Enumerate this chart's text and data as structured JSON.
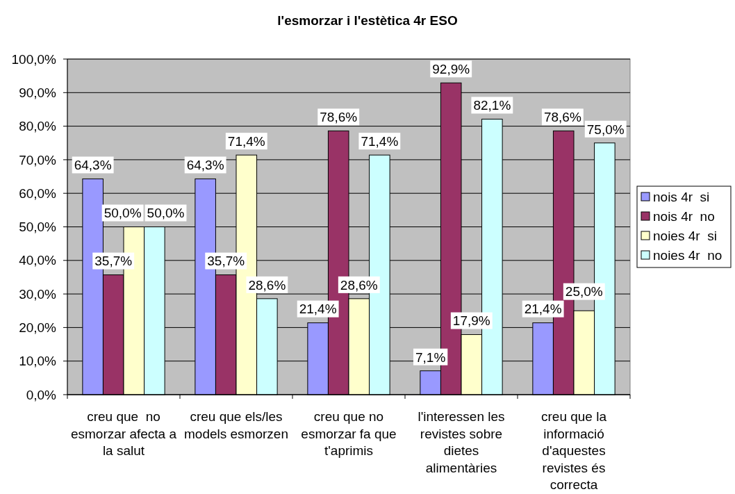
{
  "chart_data": {
    "type": "bar",
    "title": "l'esmorzar i l'estètica 4r ESO",
    "categories": [
      "creu que  no esmorzar afecta a la salut",
      "creu que els/les models esmorzen",
      "creu que no esmorzar fa que t'aprimis",
      "l'interessen les revistes sobre dietes alimentàries",
      "creu que la informació d'aquestes revistes és correcta"
    ],
    "series": [
      {
        "name": "nois 4r  si",
        "color": "#9999ff",
        "values": [
          64.3,
          64.3,
          21.4,
          7.1,
          21.4
        ],
        "value_labels": [
          "64,3%",
          "64,3%",
          "21,4%",
          "7,1%",
          "21,4%"
        ]
      },
      {
        "name": "nois 4r  no",
        "color": "#993366",
        "values": [
          35.7,
          35.7,
          78.6,
          92.9,
          78.6
        ],
        "value_labels": [
          "35,7%",
          "35,7%",
          "78,6%",
          "92,9%",
          "78,6%"
        ]
      },
      {
        "name": "noies 4r  si",
        "color": "#ffffcc",
        "values": [
          50.0,
          71.4,
          28.6,
          17.9,
          25.0
        ],
        "value_labels": [
          "50,0%",
          "71,4%",
          "28,6%",
          "17,9%",
          "25,0%"
        ]
      },
      {
        "name": "noies 4r  no",
        "color": "#ccffff",
        "values": [
          50.0,
          28.6,
          71.4,
          82.1,
          75.0
        ],
        "value_labels": [
          "50,0%",
          "28,6%",
          "71,4%",
          "82,1%",
          "75,0%"
        ]
      }
    ],
    "ylim": [
      0,
      100
    ],
    "yticks": [
      {
        "value": 0,
        "label": "0,0%"
      },
      {
        "value": 10,
        "label": "10,0%"
      },
      {
        "value": 20,
        "label": "20,0%"
      },
      {
        "value": 30,
        "label": "30,0%"
      },
      {
        "value": 40,
        "label": "40,0%"
      },
      {
        "value": 50,
        "label": "50,0%"
      },
      {
        "value": 60,
        "label": "60,0%"
      },
      {
        "value": 70,
        "label": "70,0%"
      },
      {
        "value": 80,
        "label": "80,0%"
      },
      {
        "value": 90,
        "label": "90,0%"
      },
      {
        "value": 100,
        "label": "100,0%"
      }
    ],
    "grid": "y",
    "legend": "right"
  }
}
